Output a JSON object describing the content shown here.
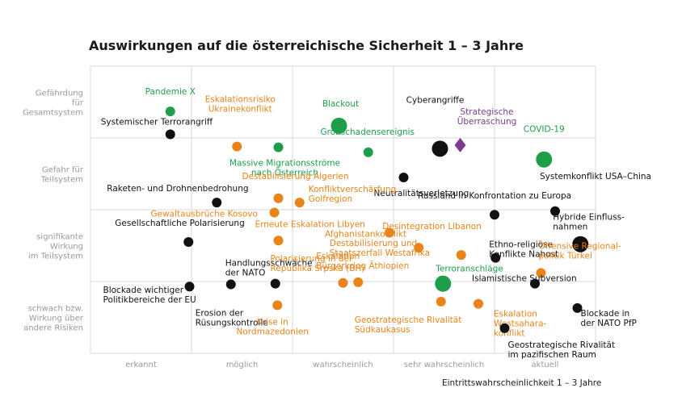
{
  "chart_data": {
    "type": "scatter",
    "title": "Auswirkungen auf die österreichische Sicherheit 1 – 3 Jahre",
    "xlabel": "Eintrittswahrscheinlichkeit 1 – 3 Jahre",
    "ylabel": "",
    "x_categories": [
      "erkannt",
      "möglich",
      "wahrscheinlich",
      "sehr wahrscheinlich",
      "aktuell"
    ],
    "y_categories": [
      [
        "schwach bzw.",
        "Wirkung über",
        "andere Risiken"
      ],
      [
        "signifikante",
        "Wirkung",
        "im Teilsystem"
      ],
      [
        "Gefahr für",
        "Teilsystem"
      ],
      [
        "Gefährdung",
        "für",
        "Gesamtsystem"
      ]
    ],
    "xlim": [
      0,
      5
    ],
    "ylim": [
      0,
      4
    ],
    "grid": true,
    "colors": {
      "black": "#111111",
      "orange": "#e8841a",
      "green": "#1e9e4a",
      "purple": "#7b3d8e"
    },
    "points": [
      {
        "lines": [
          "Pandemie X"
        ],
        "x": 0.79,
        "y": 3.37,
        "color": "green",
        "size": "small",
        "shape": "circle"
      },
      {
        "lines": [
          "Systemischer Terrorangriff"
        ],
        "x": 0.79,
        "y": 3.05,
        "color": "black",
        "size": "small",
        "shape": "circle"
      },
      {
        "lines": [
          "Eskalationsrisiko",
          "Ukrainekonflikt"
        ],
        "x": 1.45,
        "y": 2.88,
        "color": "orange",
        "size": "small",
        "shape": "circle"
      },
      {
        "lines": [
          "Blackout"
        ],
        "x": 2.46,
        "y": 3.17,
        "color": "green",
        "size": "large",
        "shape": "circle"
      },
      {
        "lines": [
          "Massive Migrationsströme",
          "nach Österreich"
        ],
        "x": 1.86,
        "y": 2.87,
        "color": "green",
        "size": "small",
        "shape": "circle"
      },
      {
        "lines": [
          "Großschadensereignis"
        ],
        "x": 2.75,
        "y": 2.8,
        "color": "green",
        "size": "small",
        "shape": "circle"
      },
      {
        "lines": [
          "Cyberangriffe"
        ],
        "x": 3.46,
        "y": 2.85,
        "color": "black",
        "size": "large",
        "shape": "circle"
      },
      {
        "lines": [
          "Strategische",
          "Überraschung"
        ],
        "x": 3.66,
        "y": 2.9,
        "color": "purple",
        "size": "small",
        "shape": "diamond"
      },
      {
        "lines": [
          "COVID-19"
        ],
        "x": 4.49,
        "y": 2.7,
        "color": "green",
        "size": "large",
        "shape": "circle"
      },
      {
        "lines": [
          "Neutralitätsverletzung"
        ],
        "x": 3.1,
        "y": 2.45,
        "color": "black",
        "size": "small",
        "shape": "circle"
      },
      {
        "lines": [
          "Destabilisierung Algerien"
        ],
        "x": 1.86,
        "y": 2.16,
        "color": "orange",
        "size": "small",
        "shape": "circle"
      },
      {
        "lines": [
          "Raketen- und Drohnenbedrohung"
        ],
        "x": 1.25,
        "y": 2.1,
        "color": "black",
        "size": "small",
        "shape": "circle"
      },
      {
        "lines": [
          "Konfliktverschärfung",
          "Golfregion"
        ],
        "x": 2.07,
        "y": 2.1,
        "color": "orange",
        "size": "small",
        "shape": "circle"
      },
      {
        "lines": [
          "Gewaltausbrüche Kosovo"
        ],
        "x": 1.82,
        "y": 1.96,
        "color": "orange",
        "size": "small",
        "shape": "circle"
      },
      {
        "lines": [
          "Systemkonflikt USA–China"
        ],
        "x": 4.6,
        "y": 1.98,
        "color": "black",
        "size": "small",
        "shape": "circle"
      },
      {
        "lines": [
          "Russland in Konfrontation zu Europa"
        ],
        "x": 4.0,
        "y": 1.93,
        "color": "black",
        "size": "small",
        "shape": "circle"
      },
      {
        "lines": [
          "Hybride Einfluss-",
          "nahmen"
        ],
        "x": 4.85,
        "y": 1.52,
        "color": "black",
        "size": "large",
        "shape": "circle"
      },
      {
        "lines": [
          "Afghanistankonflikt"
        ],
        "x": 2.96,
        "y": 1.68,
        "color": "orange",
        "size": "small",
        "shape": "circle"
      },
      {
        "lines": [
          "Gesellschaftliche Polarisierung"
        ],
        "x": 0.97,
        "y": 1.55,
        "color": "black",
        "size": "small",
        "shape": "circle"
      },
      {
        "lines": [
          "Erneute Eskalation Libyen"
        ],
        "x": 1.86,
        "y": 1.57,
        "color": "orange",
        "size": "small",
        "shape": "circle"
      },
      {
        "lines": [
          "Desintegration Libanon"
        ],
        "x": 3.25,
        "y": 1.47,
        "color": "orange",
        "size": "small",
        "shape": "circle"
      },
      {
        "lines": [
          "Destabilisierung und",
          "Staatszerfall Westafrika"
        ],
        "x": 3.67,
        "y": 1.37,
        "color": "orange",
        "size": "small",
        "shape": "circle"
      },
      {
        "lines": [
          "Ethno-religiöse",
          "Konflikte Nahost"
        ],
        "x": 4.01,
        "y": 1.33,
        "color": "black",
        "size": "small",
        "shape": "circle"
      },
      {
        "lines": [
          "Offensive Regional-",
          "politik Türkei"
        ],
        "x": 4.46,
        "y": 1.12,
        "color": "orange",
        "size": "small",
        "shape": "circle"
      },
      {
        "lines": [
          "Blockade wichtiger",
          "Politikbereiche der EU"
        ],
        "x": 0.98,
        "y": 0.93,
        "color": "black",
        "size": "small",
        "shape": "circle"
      },
      {
        "lines": [
          "Handlungsschwäche",
          "der NATO"
        ],
        "x": 1.83,
        "y": 0.97,
        "color": "black",
        "size": "small",
        "shape": "circle"
      },
      {
        "lines": [
          "Polarisierung in der",
          "Republika Srpska (BH)"
        ],
        "x": 2.5,
        "y": 0.98,
        "color": "orange",
        "size": "small",
        "shape": "circle"
      },
      {
        "lines": [
          "Eskalation",
          "Bürgerkrieg Äthiopien"
        ],
        "x": 2.65,
        "y": 0.99,
        "color": "orange",
        "size": "small",
        "shape": "circle"
      },
      {
        "lines": [
          "Terroranschläge"
        ],
        "x": 3.49,
        "y": 0.97,
        "color": "green",
        "size": "large",
        "shape": "circle"
      },
      {
        "lines": [
          "Islamistische Subversion"
        ],
        "x": 4.4,
        "y": 0.97,
        "color": "black",
        "size": "small",
        "shape": "circle"
      },
      {
        "lines": [
          "Erosion der",
          "Rüsungskontrolle"
        ],
        "x": 1.39,
        "y": 0.96,
        "color": "black",
        "size": "small",
        "shape": "circle"
      },
      {
        "lines": [
          "Krise in",
          "Nordmazedonien"
        ],
        "x": 1.85,
        "y": 0.67,
        "color": "orange",
        "size": "small",
        "shape": "circle"
      },
      {
        "lines": [
          "Eskalation",
          "Westsahara-",
          "konflikt"
        ],
        "x": 3.84,
        "y": 0.69,
        "color": "orange",
        "size": "small",
        "shape": "circle"
      },
      {
        "lines": [
          "Geostrategische Rivalität",
          "Südkaukasus"
        ],
        "x": 3.47,
        "y": 0.72,
        "color": "orange",
        "size": "small",
        "shape": "circle"
      },
      {
        "lines": [
          "Blockade in",
          "der NATO PfP"
        ],
        "x": 4.82,
        "y": 0.63,
        "color": "black",
        "size": "small",
        "shape": "circle"
      },
      {
        "lines": [
          "Geostrategische Rivalität",
          "im pazifischen Raum"
        ],
        "x": 4.1,
        "y": 0.35,
        "color": "black",
        "size": "small",
        "shape": "circle"
      }
    ]
  }
}
